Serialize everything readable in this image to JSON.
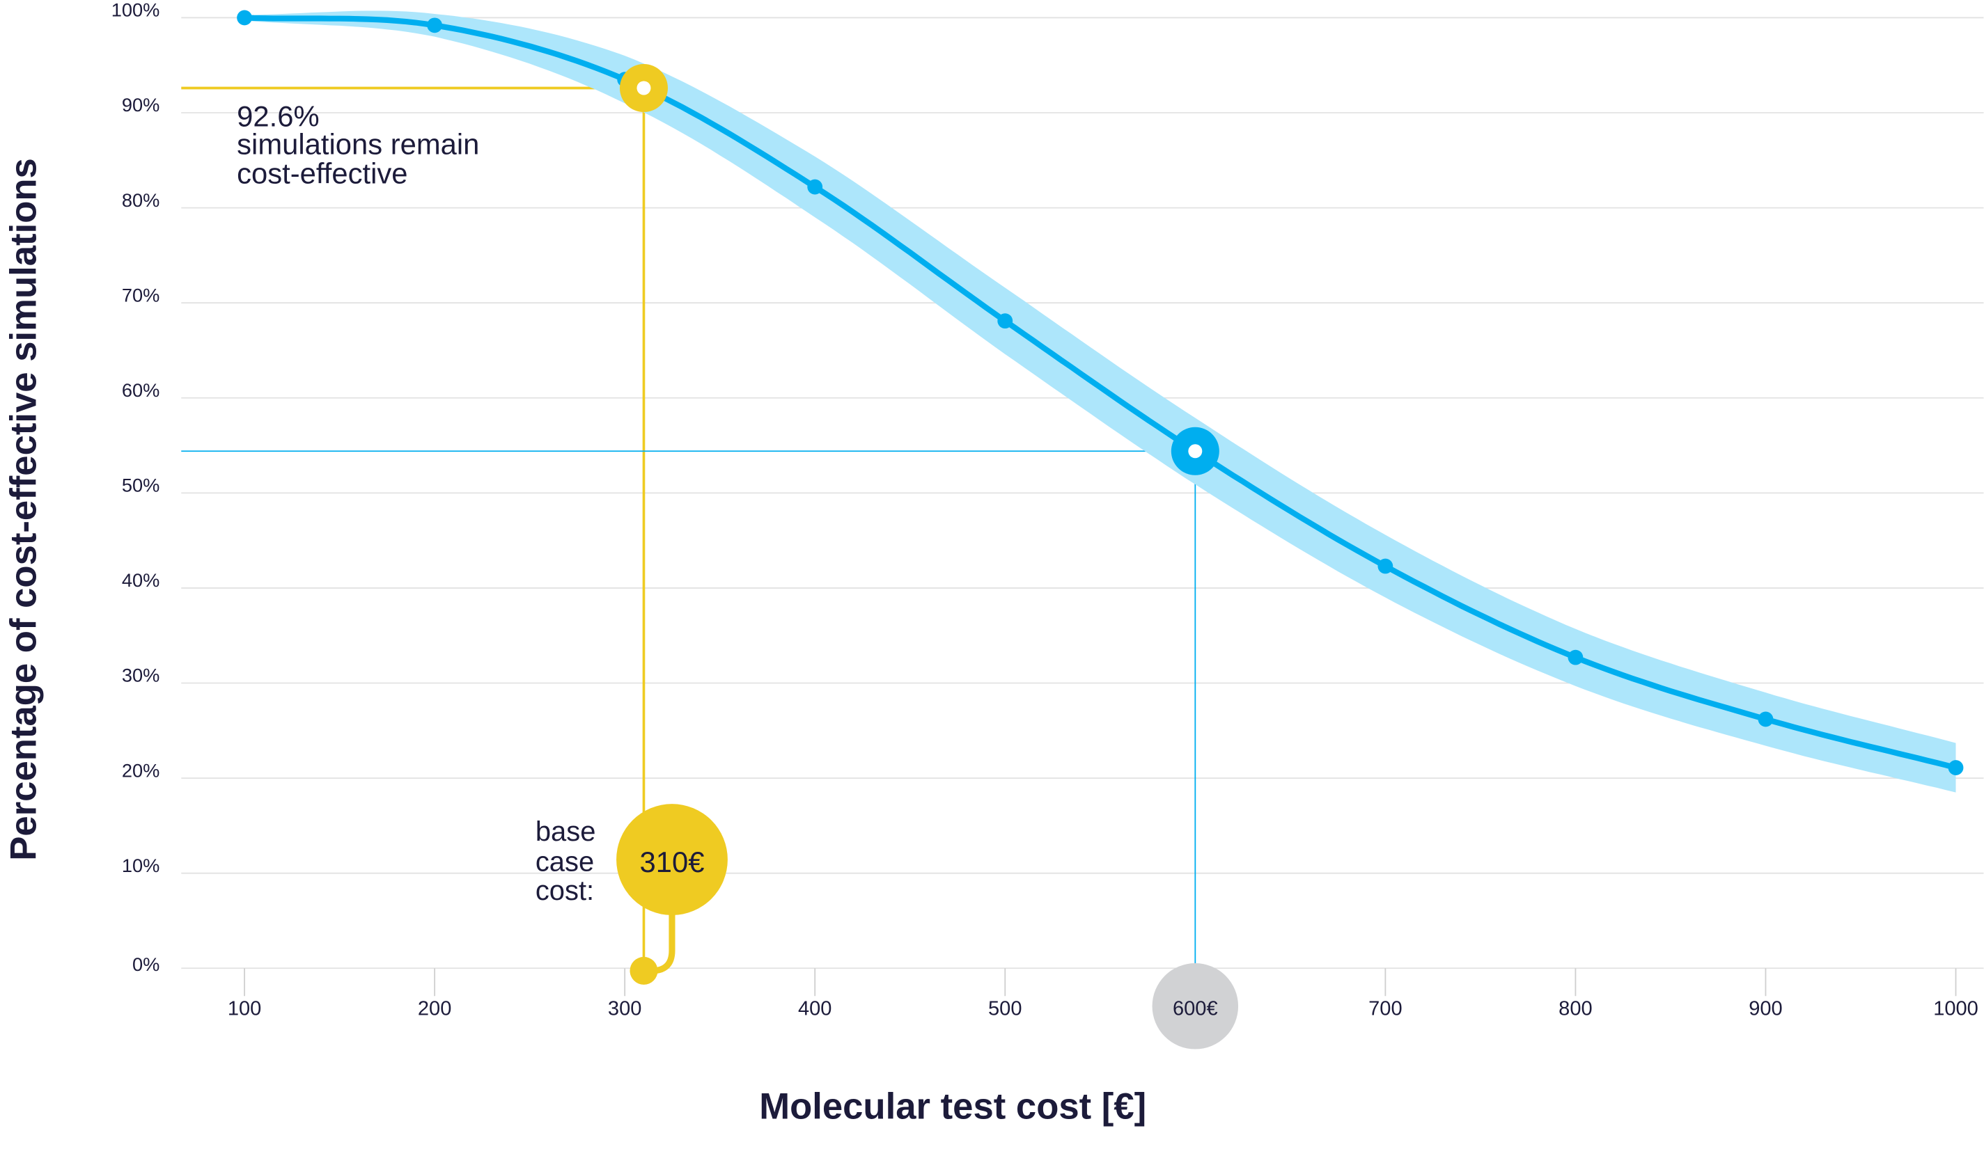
{
  "chart_data": {
    "type": "line",
    "xlabel": "Molecular test cost [€]",
    "ylabel": "Percentage of cost-effective simulations",
    "x_ticks": [
      "100",
      "200",
      "300",
      "400",
      "500",
      "600€",
      "700",
      "800",
      "900",
      "1000"
    ],
    "y_ticks": [
      "0%",
      "10%",
      "20%",
      "30%",
      "40%",
      "50%",
      "60%",
      "70%",
      "80%",
      "90%",
      "100%"
    ],
    "xlim": [
      100,
      1000
    ],
    "ylim": [
      0,
      100
    ],
    "grid": "horizontal",
    "series": [
      {
        "x": [
          100,
          200,
          300,
          400,
          500,
          600,
          700,
          800,
          900,
          1000
        ],
        "y": [
          100,
          99.2,
          93.5,
          82.2,
          68.1,
          54.4,
          42.3,
          32.7,
          26.2,
          21.1
        ],
        "band_halfwidth_pct": [
          0.3,
          1.2,
          2.5,
          3.2,
          3.5,
          3.5,
          3.3,
          3.0,
          2.8,
          2.6
        ],
        "color": "#00aeef",
        "band_color": "#ade6fb"
      }
    ],
    "annotations": {
      "base_case": {
        "x": 310,
        "y": 92.6,
        "value_label": "92.6%",
        "text_lines": [
          "simulations remain",
          "cost-effective"
        ],
        "cost_label": "310€",
        "caption_lines": [
          "base",
          "case",
          "cost:"
        ],
        "color": "#efcb22"
      },
      "threshold": {
        "x": 600,
        "y": 54.4,
        "color": "#00aeef",
        "badge_color": "#d1d2d4"
      }
    }
  }
}
